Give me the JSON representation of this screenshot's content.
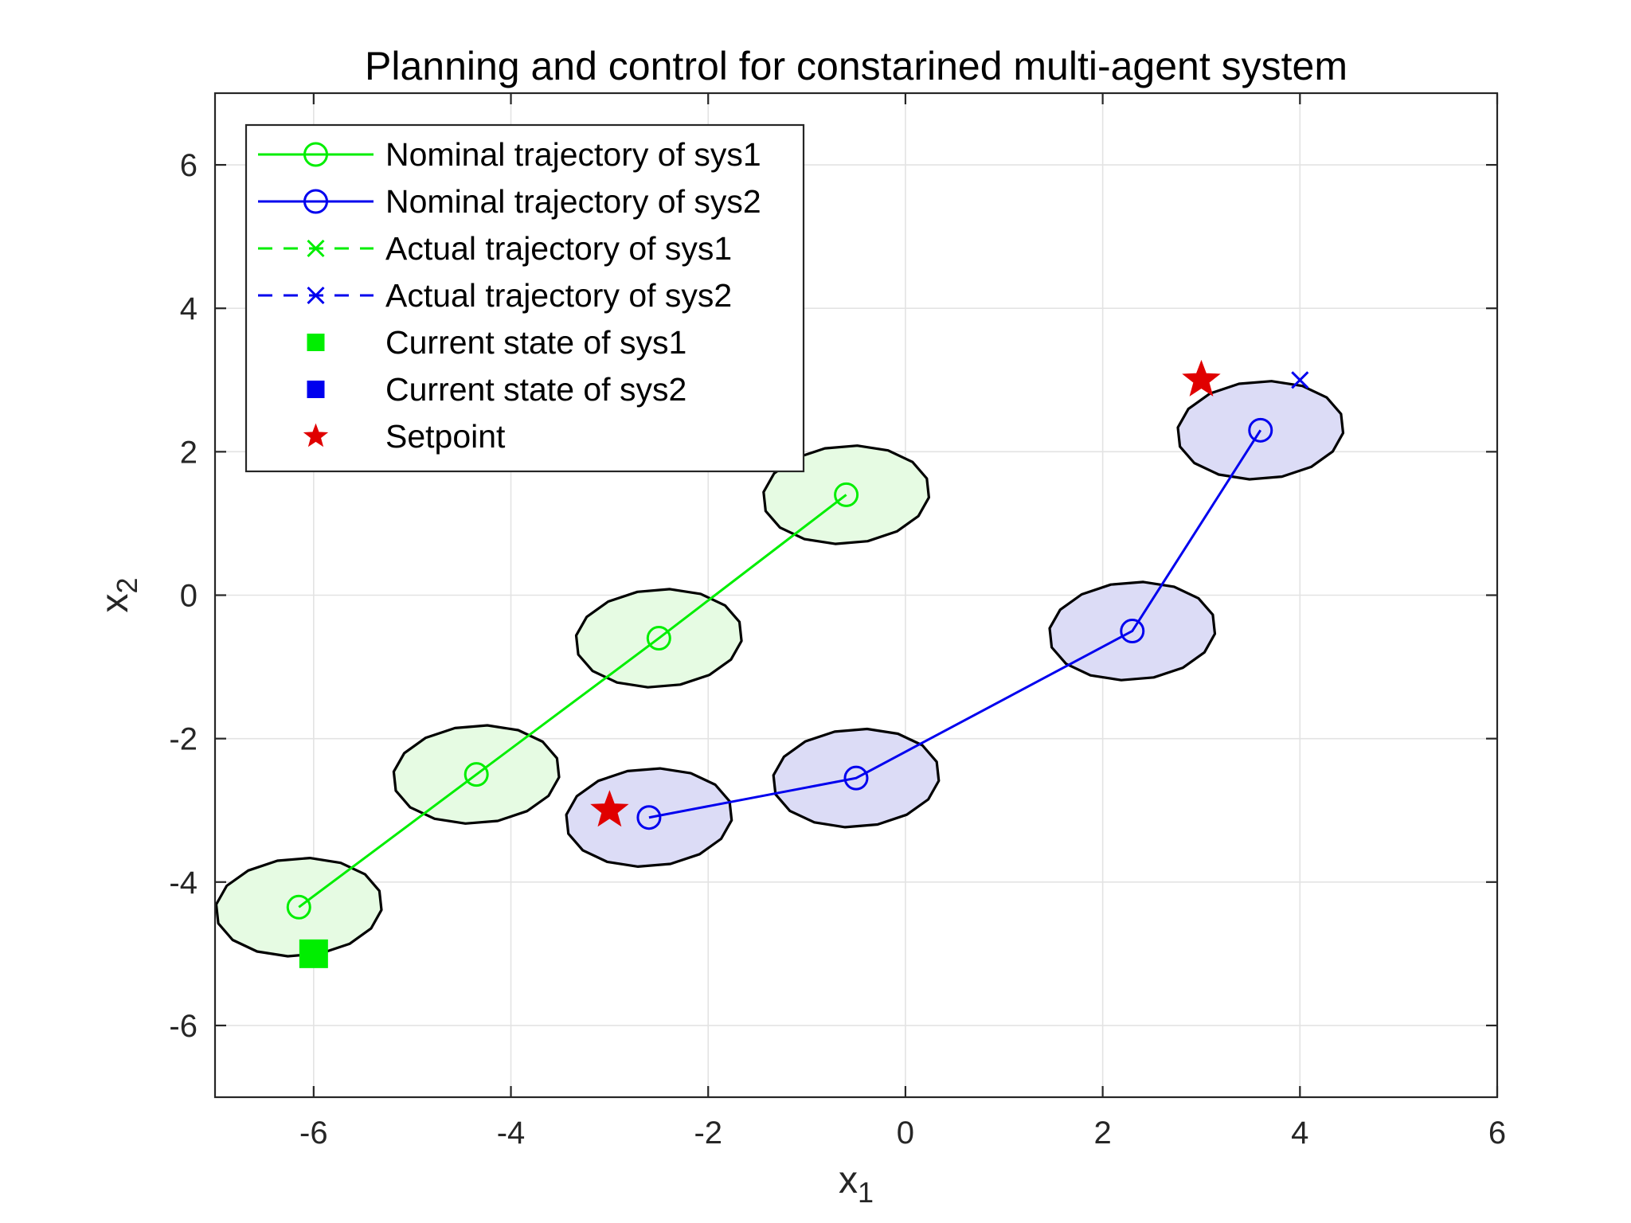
{
  "chart_data": {
    "type": "scatter",
    "title": "Planning and control for constarined multi-agent system",
    "xlabel": {
      "base": "x",
      "sub": "1"
    },
    "ylabel": {
      "base": "x",
      "sub": "2"
    },
    "xlim": [
      -7,
      6
    ],
    "ylim": [
      -7,
      7
    ],
    "xticks": [
      -6,
      -4,
      -2,
      0,
      2,
      4,
      6
    ],
    "yticks": [
      -6,
      -4,
      -2,
      0,
      2,
      4,
      6
    ],
    "xtick_labels": [
      "-6",
      "-4",
      "-2",
      "0",
      "2",
      "4",
      "6"
    ],
    "ytick_labels": [
      "-6",
      "-4",
      "-2",
      "0",
      "2",
      "4",
      "6"
    ],
    "grid": true,
    "legend_position": "top-left",
    "colors": {
      "sys1": "#00ee00",
      "sys2": "#0000ee",
      "setpoint": "#e00000",
      "sys1_fill": "#e6fbe3",
      "sys2_fill": "#dcdcf6"
    },
    "ellipse_radii": {
      "a": 0.85,
      "b": 0.68,
      "angle_deg": 10
    },
    "series": [
      {
        "name": "Nominal trajectory of sys1",
        "kind": "nominal",
        "color_key": "sys1",
        "x": [
          -6.15,
          -4.35,
          -2.5,
          -0.6
        ],
        "y": [
          -4.35,
          -2.5,
          -0.6,
          1.4
        ]
      },
      {
        "name": "Nominal trajectory of sys2",
        "kind": "nominal",
        "color_key": "sys2",
        "x": [
          -2.6,
          -0.5,
          2.3,
          3.6
        ],
        "y": [
          -3.1,
          -2.55,
          -0.5,
          2.3
        ]
      },
      {
        "name": "Actual trajectory of sys1",
        "kind": "actual",
        "color_key": "sys1",
        "x": [],
        "y": []
      },
      {
        "name": "Actual trajectory of sys2",
        "kind": "actual",
        "color_key": "sys2",
        "x": [
          4.0
        ],
        "y": [
          3.0
        ]
      },
      {
        "name": "Current state of sys1",
        "kind": "current",
        "color_key": "sys1",
        "x": [
          -6.0
        ],
        "y": [
          -5.0
        ]
      },
      {
        "name": "Current state of sys2",
        "kind": "current",
        "color_key": "sys2",
        "x": [],
        "y": []
      },
      {
        "name": "Setpoint",
        "kind": "setpoint",
        "color_key": "setpoint",
        "x": [
          3.0,
          -3.0
        ],
        "y": [
          3.0,
          -3.0
        ]
      }
    ]
  }
}
